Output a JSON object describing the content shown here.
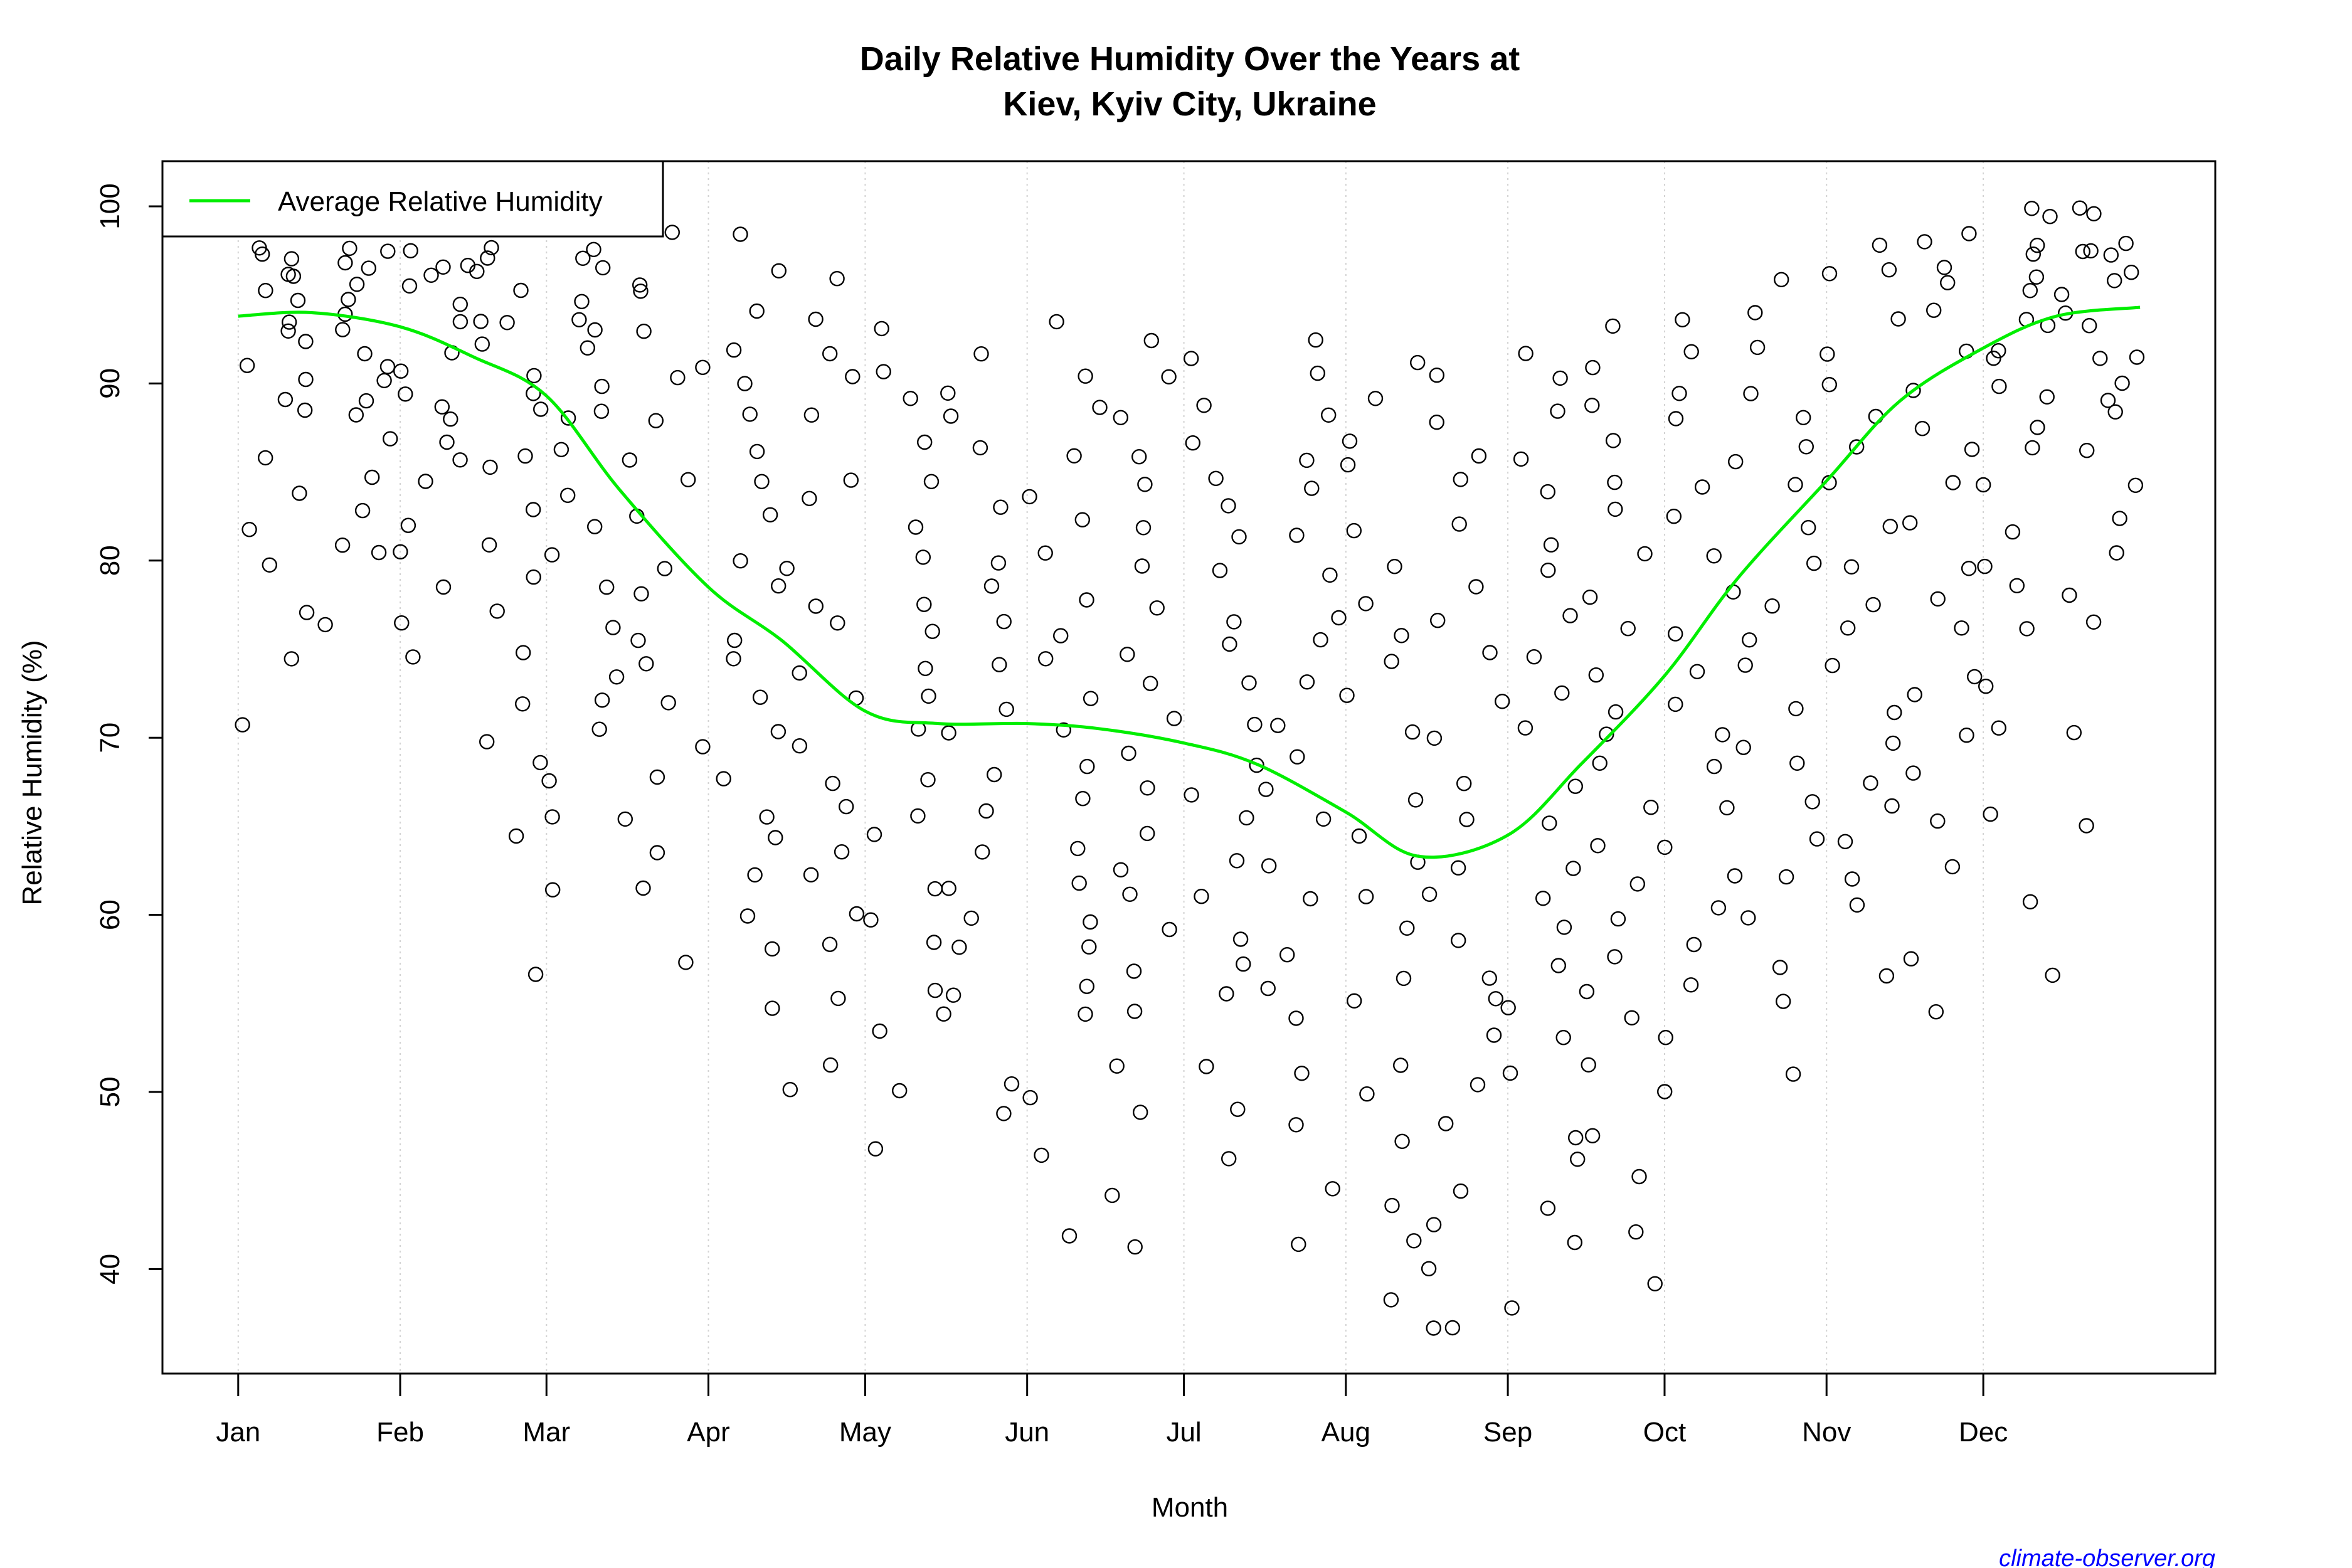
{
  "chart_data": {
    "type": "scatter",
    "title_line1": "Daily Relative Humidity Over the Years at",
    "title_line2": "Kiev, Kyiv City, Ukraine",
    "xlabel": "Month",
    "ylabel": "Relative Humidity  (%)",
    "x_ticks": [
      {
        "date": "01-01",
        "label": "Jan"
      },
      {
        "date": "02-01",
        "label": "Feb"
      },
      {
        "date": "03-01",
        "label": "Mar"
      },
      {
        "date": "04-01",
        "label": "Apr"
      },
      {
        "date": "05-01",
        "label": "May"
      },
      {
        "date": "06-01",
        "label": "Jun"
      },
      {
        "date": "07-01",
        "label": "Jul"
      },
      {
        "date": "08-01",
        "label": "Aug"
      },
      {
        "date": "09-01",
        "label": "Sep"
      },
      {
        "date": "10-01",
        "label": "Oct"
      },
      {
        "date": "11-01",
        "label": "Nov"
      },
      {
        "date": "12-01",
        "label": "Dec"
      }
    ],
    "y_ticks": [
      40,
      50,
      60,
      70,
      80,
      90,
      100
    ],
    "ylim": [
      34.1,
      102.55
    ],
    "grid": "vertical dotted at month ticks",
    "legend": {
      "placement": "top-left",
      "entries": [
        {
          "label": "Average Relative Humidity",
          "color": "#00ee00"
        }
      ]
    },
    "colors": {
      "points": "#000000",
      "average_line": "#00ee00",
      "watermark": "#0000ff"
    },
    "average_series": {
      "name": "Average Relative Humidity",
      "points": [
        [
          "01-01",
          93.8
        ],
        [
          "01-15",
          94.0
        ],
        [
          "02-01",
          93.2
        ],
        [
          "02-15",
          91.5
        ],
        [
          "03-01",
          89.3
        ],
        [
          "03-15",
          84.0
        ],
        [
          "04-01",
          78.5
        ],
        [
          "04-15",
          75.5
        ],
        [
          "05-01",
          71.5
        ],
        [
          "05-15",
          70.8
        ],
        [
          "06-01",
          70.8
        ],
        [
          "06-15",
          70.5
        ],
        [
          "07-01",
          69.7
        ],
        [
          "07-15",
          68.5
        ],
        [
          "08-01",
          65.8
        ],
        [
          "08-15",
          63.3
        ],
        [
          "09-01",
          64.5
        ],
        [
          "09-15",
          68.5
        ],
        [
          "10-01",
          73.5
        ],
        [
          "10-15",
          79.0
        ],
        [
          "11-01",
          84.5
        ],
        [
          "11-15",
          89.0
        ],
        [
          "12-01",
          92.0
        ],
        [
          "12-15",
          93.8
        ],
        [
          "12-31",
          94.3
        ]
      ]
    },
    "daily_observations_sample": [
      {
        "period": "01-01..01-15",
        "values": [
          99,
          98,
          97,
          97,
          96,
          96,
          95,
          95,
          94,
          93,
          92,
          91,
          90,
          89,
          88,
          86,
          84,
          82,
          80,
          77,
          74,
          71
        ]
      },
      {
        "period": "01-16..01-31",
        "values": [
          99,
          98,
          98,
          97,
          96,
          96,
          95,
          94,
          93,
          92,
          91,
          90,
          89,
          88,
          87,
          85,
          83,
          81,
          80,
          76
        ]
      },
      {
        "period": "02-01..02-14",
        "values": [
          99,
          98,
          97,
          97,
          96,
          95,
          94,
          93,
          92,
          91,
          90,
          89,
          88,
          87,
          86,
          84,
          82,
          80,
          78,
          76,
          74
        ]
      },
      {
        "period": "02-15..02-28",
        "values": [
          99,
          98,
          97,
          96,
          95,
          94,
          93,
          92,
          91,
          89,
          88,
          86,
          85,
          83,
          81,
          79,
          77,
          75,
          72,
          70,
          68,
          64,
          57
        ]
      },
      {
        "period": "03-01..03-15",
        "values": [
          98,
          97,
          96,
          95,
          94,
          93,
          92,
          90,
          89,
          88,
          86,
          84,
          82,
          80,
          78,
          76,
          74,
          72,
          70,
          68,
          66,
          62
        ]
      },
      {
        "period": "03-16..03-31",
        "values": [
          98,
          96,
          95,
          93,
          91,
          90,
          88,
          86,
          84,
          82,
          80,
          78,
          76,
          74,
          72,
          70,
          68,
          66,
          64,
          61,
          57
        ]
      },
      {
        "period": "04-01..04-15",
        "values": [
          98,
          96,
          94,
          92,
          90,
          88,
          86,
          84,
          82,
          80,
          78,
          76,
          74,
          72,
          70,
          68,
          66,
          64,
          62,
          60,
          58,
          55
        ]
      },
      {
        "period": "04-16..04-30",
        "values": [
          96,
          94,
          92,
          90,
          88,
          85,
          83,
          80,
          78,
          76,
          74,
          72,
          70,
          68,
          66,
          64,
          62,
          60,
          58,
          55,
          52,
          50
        ]
      },
      {
        "period": "05-01..05-15",
        "values": [
          93,
          91,
          89,
          87,
          85,
          82,
          80,
          78,
          76,
          74,
          72,
          70,
          68,
          66,
          64,
          62,
          60,
          58,
          56,
          54,
          50,
          47
        ]
      },
      {
        "period": "05-16..05-31",
        "values": [
          92,
          90,
          88,
          86,
          83,
          80,
          78,
          76,
          74,
          72,
          70,
          68,
          66,
          64,
          62,
          60,
          58,
          56,
          54,
          51,
          49
        ]
      },
      {
        "period": "06-01..06-15",
        "values": [
          93,
          91,
          89,
          86,
          84,
          82,
          80,
          78,
          76,
          74,
          72,
          70,
          68,
          66,
          64,
          62,
          60,
          58,
          56,
          54,
          50,
          47,
          41.5
        ]
      },
      {
        "period": "06-16..06-30",
        "values": [
          92,
          90,
          88,
          86,
          84,
          82,
          80,
          77,
          75,
          73,
          71,
          69,
          67,
          65,
          63,
          61,
          59,
          57,
          55,
          52,
          49,
          44,
          41.3
        ]
      },
      {
        "period": "07-01..07-15",
        "values": [
          91,
          89,
          87,
          85,
          83,
          81,
          79,
          77,
          75,
          73,
          71,
          69,
          67,
          65,
          63,
          61,
          59,
          57,
          55,
          52,
          49,
          46
        ]
      },
      {
        "period": "07-16..07-31",
        "values": [
          93,
          90,
          88,
          86,
          84,
          82,
          79,
          77,
          75,
          73,
          71,
          69,
          67,
          65,
          63,
          61,
          58,
          56,
          54,
          51,
          48,
          44,
          41
        ]
      },
      {
        "period": "08-01..08-15",
        "values": [
          91,
          89,
          87,
          85,
          82,
          80,
          78,
          76,
          74,
          72,
          70,
          67,
          65,
          63,
          61,
          59,
          57,
          55,
          52,
          50,
          47,
          44,
          41,
          38
        ]
      },
      {
        "period": "08-16..08-31",
        "values": [
          90,
          88,
          86,
          84,
          82,
          79,
          77,
          75,
          72,
          70,
          68,
          65,
          63,
          61,
          59,
          57,
          55,
          53,
          50,
          48,
          45,
          43,
          40,
          37,
          36.5
        ]
      },
      {
        "period": "09-01..09-15",
        "values": [
          92,
          90,
          88,
          86,
          84,
          81,
          79,
          77,
          74,
          72,
          70,
          67,
          65,
          63,
          61,
          59,
          57,
          55,
          53,
          51,
          48,
          46,
          43,
          41,
          37.5
        ]
      },
      {
        "period": "09-16..09-30",
        "values": [
          93,
          91,
          89,
          87,
          85,
          83,
          80,
          78,
          76,
          74,
          72,
          70,
          68,
          66,
          64,
          62,
          60,
          58,
          56,
          54,
          51,
          48,
          45,
          42,
          39.7
        ]
      },
      {
        "period": "10-01..10-15",
        "values": [
          94,
          92,
          90,
          88,
          86,
          84,
          82,
          80,
          78,
          76,
          74,
          72,
          70,
          68,
          66,
          64,
          62,
          60,
          58,
          56,
          53,
          50
        ]
      },
      {
        "period": "10-16..10-31",
        "values": [
          96,
          94,
          92,
          90,
          88,
          86,
          84,
          82,
          80,
          78,
          76,
          74,
          72,
          70,
          68,
          66,
          64,
          62,
          60,
          57,
          55,
          51
        ]
      },
      {
        "period": "11-01..11-15",
        "values": [
          98,
          97,
          96,
          94,
          92,
          90,
          88,
          86,
          84,
          82,
          80,
          78,
          76,
          74,
          72,
          70,
          68,
          66,
          64,
          62,
          60,
          56
        ]
      },
      {
        "period": "11-16..11-30",
        "values": [
          99,
          98,
          97,
          96,
          94,
          92,
          90,
          88,
          86,
          84,
          82,
          80,
          78,
          76,
          74,
          72,
          70,
          68,
          65,
          63,
          58,
          54
        ]
      },
      {
        "period": "12-01..12-15",
        "values": [
          99.5,
          99,
          98,
          97,
          96,
          95,
          94,
          93,
          92,
          91,
          90,
          89,
          88,
          86,
          84,
          82,
          80,
          78,
          76,
          73,
          70,
          66,
          61,
          57
        ]
      },
      {
        "period": "12-16..12-31",
        "values": [
          99.5,
          99,
          98,
          98,
          97,
          97,
          96,
          96,
          95,
          94,
          93,
          92,
          91,
          90,
          89,
          88,
          86,
          84,
          82,
          80,
          78,
          76,
          70,
          65
        ]
      }
    ]
  },
  "watermark": "climate-observer.org"
}
